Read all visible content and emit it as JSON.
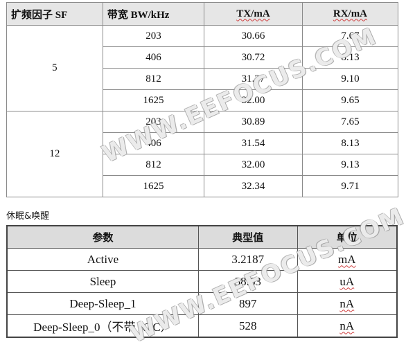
{
  "table1": {
    "headers": [
      "扩频因子 SF",
      "带宽 BW/kHz",
      "TX/mA",
      "RX/mA"
    ],
    "groups": [
      {
        "sf": "5",
        "rows": [
          {
            "bw": "203",
            "tx": "30.66",
            "rx": "7.67"
          },
          {
            "bw": "406",
            "tx": "30.72",
            "rx": "8.13"
          },
          {
            "bw": "812",
            "tx": "31.37",
            "rx": "9.10"
          },
          {
            "bw": "1625",
            "tx": "32.00",
            "rx": "9.65"
          }
        ]
      },
      {
        "sf": "12",
        "rows": [
          {
            "bw": "203",
            "tx": "30.89",
            "rx": "7.65"
          },
          {
            "bw": "406",
            "tx": "31.54",
            "rx": "8.13"
          },
          {
            "bw": "812",
            "tx": "32.00",
            "rx": "9.13"
          },
          {
            "bw": "1625",
            "tx": "32.34",
            "rx": "9.71"
          }
        ]
      }
    ]
  },
  "caption": "休眠&唤醒",
  "table2": {
    "headers": [
      "参数",
      "典型值",
      "单位"
    ],
    "rows": [
      {
        "param": "Active",
        "value": "3.2187",
        "unit": "mA"
      },
      {
        "param": "Sleep",
        "value": "58.63",
        "unit": "uA"
      },
      {
        "param": "Deep-Sleep_1",
        "value": "897",
        "unit": "nA"
      },
      {
        "param": "Deep-Sleep_0（不带 RTC）",
        "value": "528",
        "unit": "nA"
      }
    ]
  },
  "watermark": "WWW.EEFOCUS.COM"
}
